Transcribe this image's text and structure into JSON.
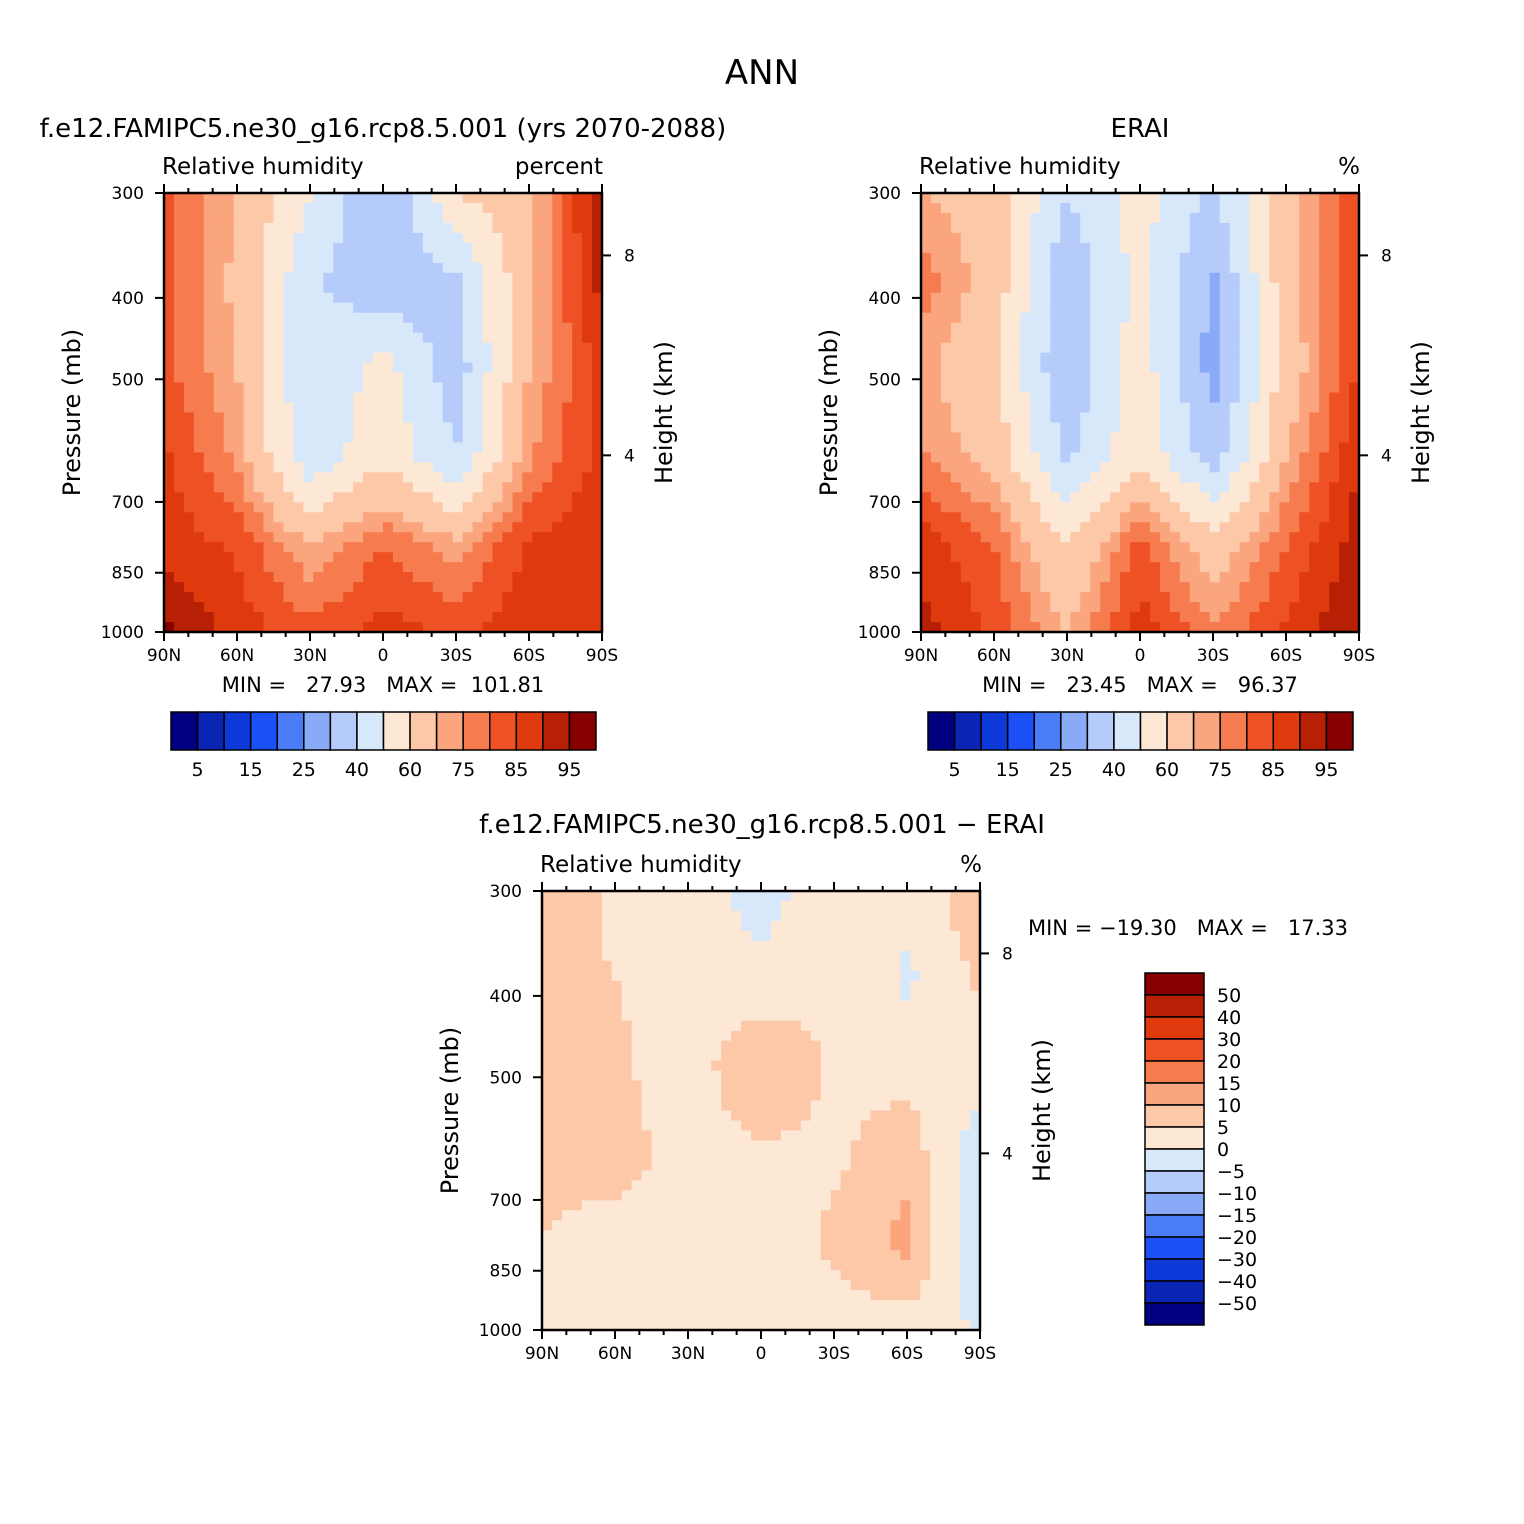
{
  "figure": {
    "title": "ANN",
    "panels": [
      {
        "title": "f.e12.FAMIPC5.ne30_g16.rcp8.5.001 (yrs 2070-2088)",
        "left_label": "Relative humidity",
        "right_label": "percent",
        "y_label": "Pressure (mb)",
        "y2_label": "Height (km)",
        "stats": "MIN =   27.93   MAX =  101.81",
        "colorbar_labels": [
          "5",
          "15",
          "25",
          "40",
          "60",
          "75",
          "85",
          "95"
        ]
      },
      {
        "title": "ERAI",
        "left_label": "Relative humidity",
        "right_label": "%",
        "y_label": "Pressure (mb)",
        "y2_label": "Height (km)",
        "stats": "MIN =   23.45   MAX =   96.37",
        "colorbar_labels": [
          "5",
          "15",
          "25",
          "40",
          "60",
          "75",
          "85",
          "95"
        ]
      },
      {
        "title": "f.e12.FAMIPC5.ne30_g16.rcp8.5.001 − ERAI",
        "left_label": "Relative humidity",
        "right_label": "%",
        "y_label": "Pressure (mb)",
        "y2_label": "Height (km)",
        "stats": "MIN = −19.30   MAX =   17.33",
        "colorbar_labels": [
          "50",
          "40",
          "30",
          "20",
          "15",
          "10",
          "5",
          "0",
          "−5",
          "−10",
          "−15",
          "−20",
          "−30",
          "−40",
          "−50"
        ]
      }
    ]
  },
  "axes": {
    "x_ticks": [
      "90N",
      "60N",
      "30N",
      "0",
      "30S",
      "60S",
      "90S"
    ],
    "y_ticks": [
      "300",
      "400",
      "500",
      "700",
      "850",
      "1000"
    ],
    "y2_ticks": [
      "8",
      "4"
    ]
  },
  "colors": {
    "abs_palette": [
      "#000080",
      "#0a25b3",
      "#0c39d8",
      "#1a50f5",
      "#4a7df5",
      "#88aaf7",
      "#b5cbfa",
      "#d8e8fb",
      "#fde8d6",
      "#fdc8a8",
      "#fba57f",
      "#f67c4f",
      "#ee5224",
      "#df3a0d",
      "#b82005",
      "#870000"
    ],
    "diff_palette": [
      "#000080",
      "#0a25b3",
      "#0c39d8",
      "#1a50f5",
      "#4a7df5",
      "#88aaf7",
      "#b5cbfa",
      "#d8e8fb",
      "#fde8d6",
      "#fdc8a8",
      "#fba57f",
      "#f67c4f",
      "#ee5224",
      "#df3a0d",
      "#b82005",
      "#870000"
    ]
  },
  "chart_data": [
    {
      "type": "heatmap",
      "title": "f.e12.FAMIPC5.ne30_g16.rcp8.5.001 (yrs 2070-2088)",
      "xlabel": "",
      "ylabel": "Pressure (mb)",
      "x": [
        "90N",
        "60N",
        "30N",
        "0",
        "30S",
        "60S",
        "90S"
      ],
      "y": [
        300,
        400,
        500,
        700,
        850,
        1000
      ],
      "y_scale": "log",
      "y_reversed": true,
      "z": [
        [
          82,
          70,
          50,
          30,
          60,
          68,
          95
        ],
        [
          82,
          68,
          42,
          32,
          38,
          68,
          92
        ],
        [
          82,
          70,
          40,
          54,
          34,
          70,
          88
        ],
        [
          86,
          74,
          42,
          58,
          40,
          74,
          87
        ],
        [
          88,
          84,
          70,
          80,
          72,
          86,
          89
        ],
        [
          96,
          88,
          82,
          87,
          84,
          89,
          90
        ]
      ],
      "levels": [
        5,
        10,
        15,
        20,
        25,
        30,
        40,
        50,
        60,
        70,
        75,
        80,
        85,
        90,
        95
      ],
      "min": 27.93,
      "max": 101.81
    },
    {
      "type": "heatmap",
      "title": "ERAI",
      "xlabel": "",
      "ylabel": "Pressure (mb)",
      "x": [
        "90N",
        "60N",
        "30N",
        "0",
        "30S",
        "60S",
        "90S"
      ],
      "y": [
        300,
        400,
        500,
        700,
        850,
        1000
      ],
      "y_scale": "log",
      "y_reversed": true,
      "z": [
        [
          70,
          66,
          40,
          54,
          38,
          66,
          86
        ],
        [
          78,
          66,
          32,
          54,
          28,
          66,
          86
        ],
        [
          72,
          62,
          30,
          56,
          26,
          64,
          86
        ],
        [
          76,
          66,
          38,
          58,
          34,
          70,
          90
        ],
        [
          88,
          80,
          60,
          82,
          64,
          80,
          93
        ],
        [
          92,
          84,
          70,
          88,
          76,
          86,
          95
        ]
      ],
      "levels": [
        5,
        10,
        15,
        20,
        25,
        30,
        40,
        50,
        60,
        70,
        75,
        80,
        85,
        90,
        95
      ],
      "min": 23.45,
      "max": 96.37
    },
    {
      "type": "heatmap",
      "title": "f.e12.FAMIPC5.ne30_g16.rcp8.5.001 − ERAI",
      "xlabel": "",
      "ylabel": "Pressure (mb)",
      "x": [
        "90N",
        "60N",
        "30N",
        "0",
        "30S",
        "60S",
        "90S"
      ],
      "y": [
        300,
        400,
        500,
        700,
        850,
        1000
      ],
      "y_scale": "log",
      "y_reversed": true,
      "z": [
        [
          8,
          4,
          2,
          -2,
          3,
          2,
          8
        ],
        [
          6,
          5,
          3,
          1,
          5,
          -1,
          6
        ],
        [
          6,
          6,
          2,
          10,
          4,
          3,
          2
        ],
        [
          6,
          7,
          3,
          4,
          4,
          8,
          -3
        ],
        [
          5,
          3,
          4,
          2,
          6,
          12,
          -6
        ],
        [
          3,
          2,
          4,
          1,
          3,
          2,
          0
        ]
      ],
      "levels": [
        -50,
        -40,
        -30,
        -20,
        -15,
        -10,
        -5,
        0,
        5,
        10,
        15,
        20,
        30,
        40,
        50
      ],
      "min": -19.3,
      "max": 17.33
    }
  ]
}
